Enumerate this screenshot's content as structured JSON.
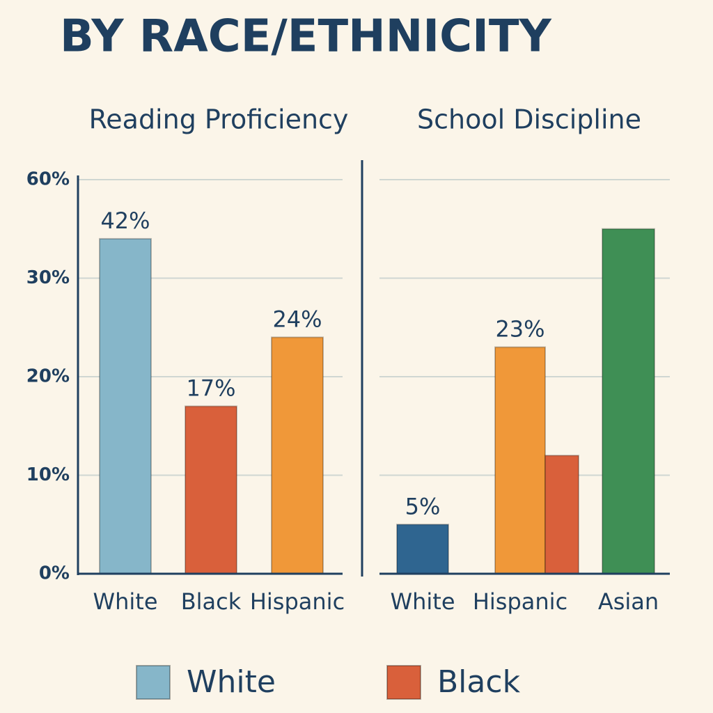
{
  "title": "BY RACE/ETHNICITY",
  "chart_data": [
    {
      "type": "bar",
      "title": "Reading Proficiency",
      "categories": [
        "White",
        "Black",
        "Hispanic"
      ],
      "values": [
        42,
        17,
        24
      ],
      "value_labels": [
        "42%",
        "17%",
        "24%"
      ],
      "colors": [
        "#86b6c9",
        "#d9603b",
        "#f09839"
      ],
      "ylim": [
        0,
        60
      ],
      "yticks": [
        {
          "value": 0,
          "label": "0%"
        },
        {
          "value": 10,
          "label": "10%"
        },
        {
          "value": 20,
          "label": "20%"
        },
        {
          "value": 30,
          "label": "30%"
        },
        {
          "value": 60,
          "label": "60%"
        }
      ],
      "grid": true
    },
    {
      "type": "bar",
      "title": "School Discipline",
      "categories": [
        "White",
        "Hispanic",
        null,
        "Asian"
      ],
      "values": [
        5,
        23,
        12,
        45
      ],
      "value_labels": [
        "5%",
        "23%",
        null,
        null
      ],
      "colors": [
        "#2f6590",
        "#f09839",
        "#d9603b",
        "#3f8f55"
      ],
      "ylim": [
        0,
        60
      ],
      "grid": true
    }
  ],
  "legend": [
    {
      "name": "White",
      "color": "#86b6c9"
    },
    {
      "name": "Black",
      "color": "#d9603b"
    }
  ]
}
